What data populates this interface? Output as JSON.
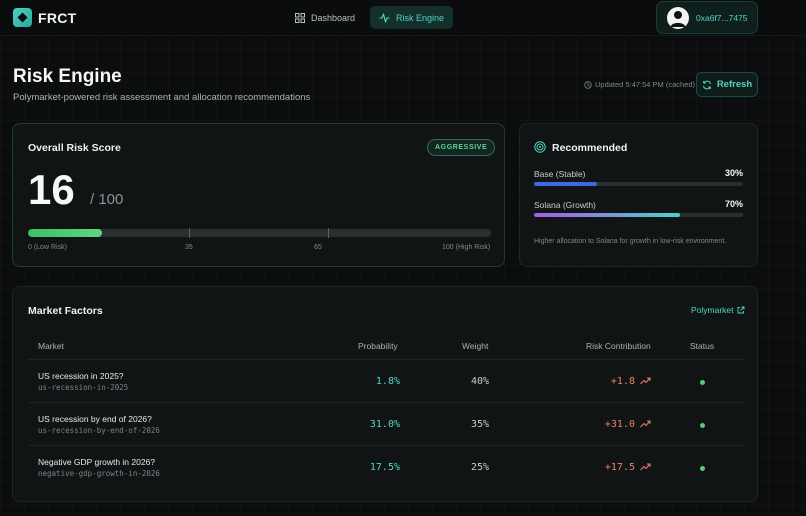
{
  "app": {
    "name": "FRCT"
  },
  "nav": {
    "tabs": [
      {
        "label": "Dashboard",
        "icon": "grid-icon",
        "active": false
      },
      {
        "label": "Risk Engine",
        "icon": "activity-icon",
        "active": true
      }
    ]
  },
  "wallet": {
    "address": "0xa6f7...7475"
  },
  "header": {
    "title": "Risk Engine",
    "subtitle": "Polymarket-powered risk assessment and allocation recommendations",
    "updated": "Updated 5:47:54 PM (cached)",
    "refresh_label": "Refresh"
  },
  "risk": {
    "title": "Overall Risk Score",
    "badge": "AGGRESSIVE",
    "score": "16",
    "max": "/ 100",
    "score_value": 16,
    "scale": {
      "low": "0 (Low Risk)",
      "m1": "35",
      "m2": "65",
      "high": "100 (High Risk)"
    }
  },
  "recommended": {
    "title": "Recommended",
    "allocations": [
      {
        "label": "Base (Stable)",
        "pct": "30%",
        "value": 30
      },
      {
        "label": "Solana (Growth)",
        "pct": "70%",
        "value": 70
      }
    ],
    "note": "Higher allocation to Solana for growth in low-risk environment."
  },
  "market": {
    "title": "Market Factors",
    "link": "Polymarket",
    "columns": {
      "market": "Market",
      "probability": "Probability",
      "weight": "Weight",
      "risk": "Risk Contribution",
      "status": "Status"
    },
    "rows": [
      {
        "title": "US recession in 2025?",
        "slug": "us-recession-in-2025",
        "probability": "1.8%",
        "weight": "40%",
        "risk": "+1.8"
      },
      {
        "title": "US recession by end of 2026?",
        "slug": "us-recession-by-end-of-2026",
        "probability": "31.0%",
        "weight": "35%",
        "risk": "+31.0"
      },
      {
        "title": "Negative GDP growth in 2026?",
        "slug": "negative-gdp-growth-in-2026",
        "probability": "17.5%",
        "weight": "25%",
        "risk": "+17.5"
      }
    ]
  },
  "colors": {
    "accent": "#53d6c0",
    "risk_positive": "#e8826a",
    "status_ok": "#4fd07a",
    "base_bar": "#3d6be0",
    "solana_bar_start": "#a55ce8",
    "solana_bar_end": "#4fd1c5"
  }
}
